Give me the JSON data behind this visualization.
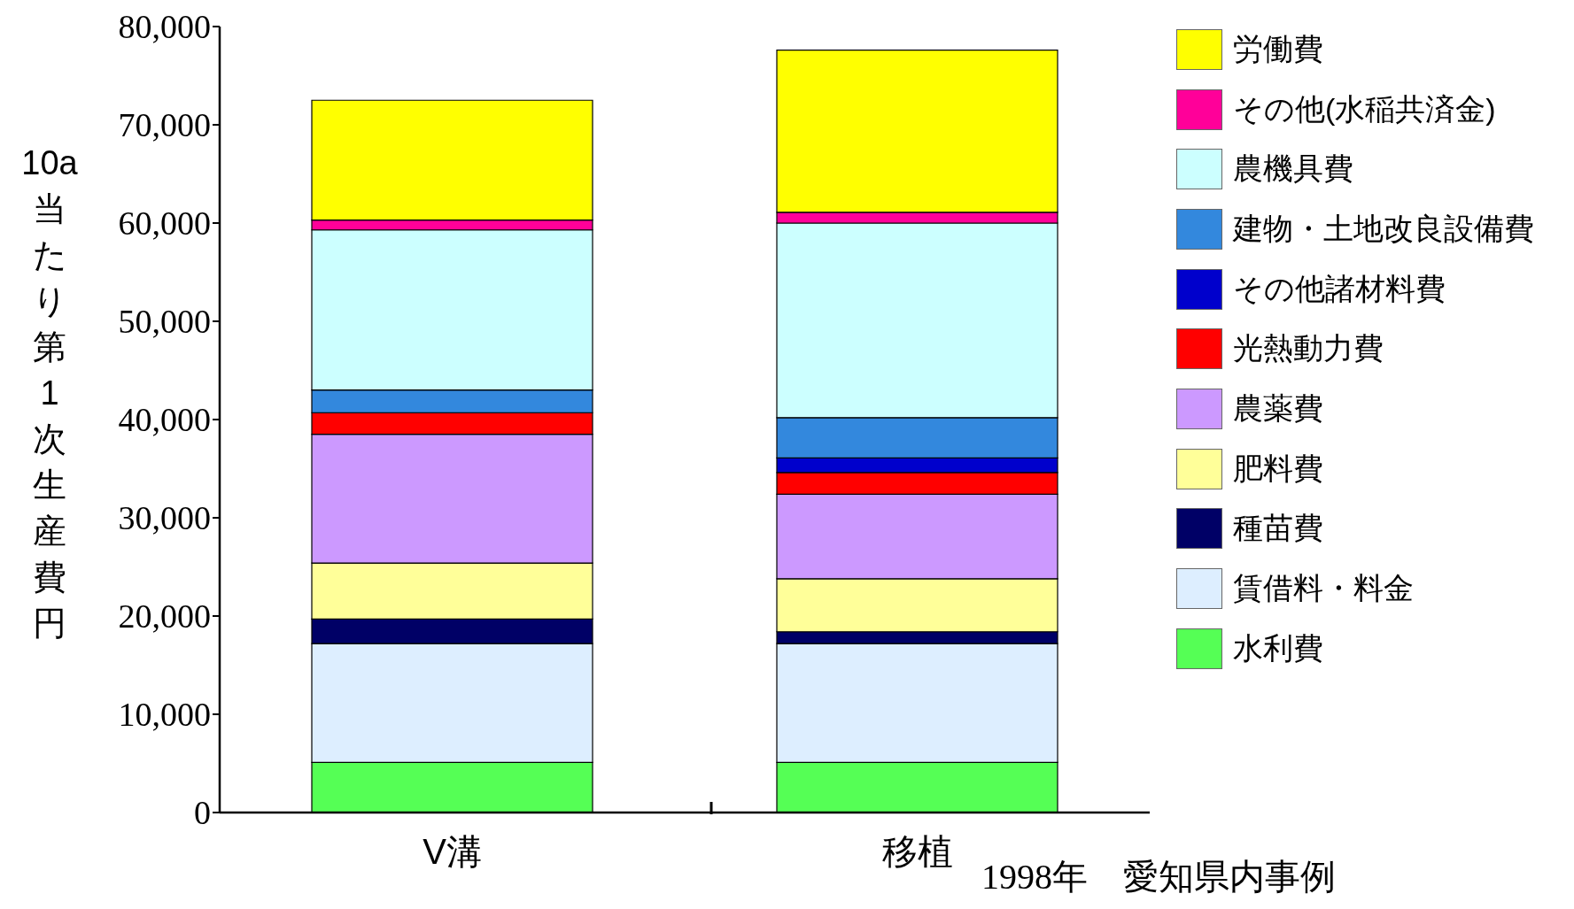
{
  "chart_data": {
    "type": "bar",
    "stacked": true,
    "categories": [
      "V溝",
      "移植"
    ],
    "series": [
      {
        "name": "水利費",
        "color": "#55ff55",
        "values": [
          5100,
          5100
        ]
      },
      {
        "name": "賃借料・料金",
        "color": "#ddeeff",
        "values": [
          12100,
          12100
        ]
      },
      {
        "name": "種苗費",
        "color": "#000066",
        "values": [
          2500,
          1200
        ]
      },
      {
        "name": "肥料費",
        "color": "#ffff99",
        "values": [
          5700,
          5400
        ]
      },
      {
        "name": "農薬費",
        "color": "#cc99ff",
        "values": [
          13100,
          8600
        ]
      },
      {
        "name": "光熱動力費",
        "color": "#ff0000",
        "values": [
          2200,
          2200
        ]
      },
      {
        "name": "その他諸材料費",
        "color": "#0000cc",
        "values": [
          0,
          1500
        ]
      },
      {
        "name": "建物・土地改良設備費",
        "color": "#3388dd",
        "values": [
          2300,
          4100
        ]
      },
      {
        "name": "農機具費",
        "color": "#ccffff",
        "values": [
          16300,
          19800
        ]
      },
      {
        "name": "その他(水稲共済金)",
        "color": "#ff0099",
        "values": [
          1000,
          1100
        ]
      },
      {
        "name": "労働費",
        "color": "#ffff00",
        "values": [
          12200,
          16500
        ]
      }
    ],
    "ylabel": "10a当たり第1次生産費円",
    "ylim": [
      0,
      80000
    ],
    "yticks": [
      {
        "value": 0,
        "label": "0"
      },
      {
        "value": 10000,
        "label": "10,000"
      },
      {
        "value": 20000,
        "label": "20,000"
      },
      {
        "value": 30000,
        "label": "30,000"
      },
      {
        "value": 40000,
        "label": "40,000"
      },
      {
        "value": 50000,
        "label": "50,000"
      },
      {
        "value": 60000,
        "label": "60,000"
      },
      {
        "value": 70000,
        "label": "70,000"
      },
      {
        "value": 80000,
        "label": "80,000"
      }
    ],
    "grid": false,
    "legend": "right",
    "annotations": [
      "1998年　愛知県内事例"
    ]
  }
}
